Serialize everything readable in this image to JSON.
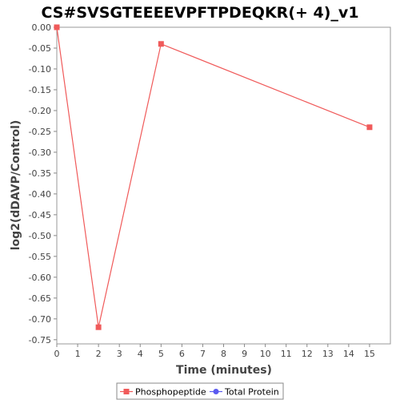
{
  "chart_data": {
    "type": "line",
    "title": "CS#SVSGTEEEEVPFTPDEQKR(+ 4)_v1",
    "xlabel": "Time (minutes)",
    "ylabel": "log2(dDAVP/Control)",
    "xlim": [
      0,
      16
    ],
    "ylim": [
      -0.76,
      0.0
    ],
    "xticks": [
      0,
      1,
      2,
      3,
      4,
      5,
      6,
      7,
      8,
      9,
      10,
      11,
      12,
      13,
      14,
      15
    ],
    "yticks": [
      0.0,
      -0.05,
      -0.1,
      -0.15,
      -0.2,
      -0.25,
      -0.3,
      -0.35,
      -0.4,
      -0.45,
      -0.5,
      -0.55,
      -0.6,
      -0.65,
      -0.7,
      -0.75
    ],
    "ytick_labels": [
      "0.00",
      "-0.05",
      "-0.10",
      "-0.15",
      "-0.20",
      "-0.25",
      "-0.30",
      "-0.35",
      "-0.40",
      "-0.45",
      "-0.50",
      "-0.55",
      "-0.60",
      "-0.65",
      "-0.70",
      "-0.75"
    ],
    "grid": false,
    "legend_position": "bottom",
    "series": [
      {
        "name": "Phosphopeptide",
        "color": "#f05a5a",
        "marker": "square",
        "x": [
          0,
          2,
          5,
          15
        ],
        "y": [
          0.0,
          -0.72,
          -0.04,
          -0.24
        ]
      },
      {
        "name": "Total Protein",
        "color": "#5a5af0",
        "marker": "circle",
        "x": [],
        "y": []
      }
    ]
  }
}
